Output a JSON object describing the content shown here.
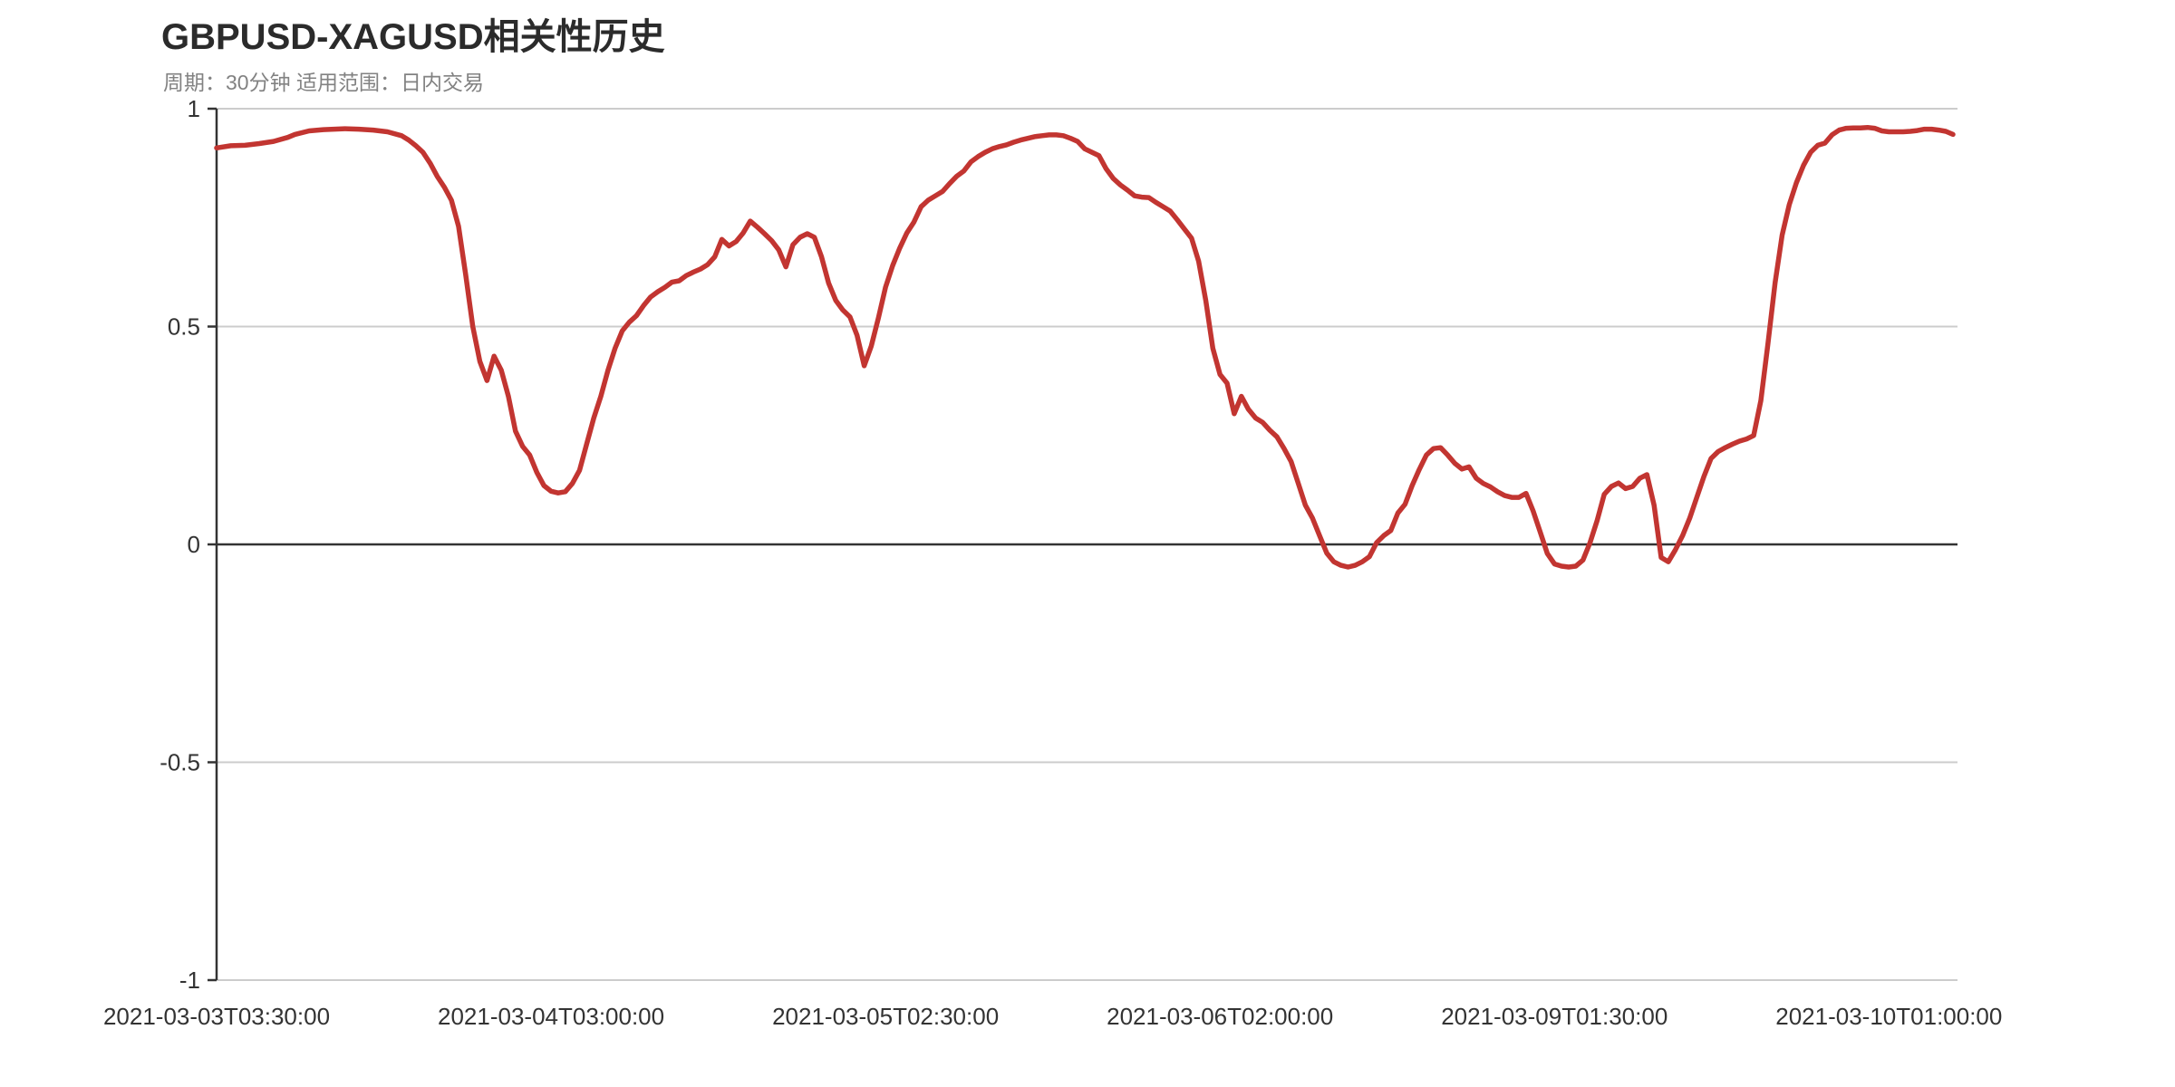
{
  "header": {
    "title": "GBPUSD-XAGUSD相关性历史",
    "subtitle": "周期：30分钟 适用范围：日内交易"
  },
  "chart_data": {
    "type": "line",
    "title": "GBPUSD-XAGUSD相关性历史",
    "subtitle": "周期：30分钟 适用范围：日内交易",
    "xlabel": "",
    "ylabel": "",
    "ylim": [
      -1,
      1
    ],
    "y_tick_labels": [
      "1",
      "0.5",
      "0",
      "-0.5",
      "-1"
    ],
    "y_tick_values": [
      1,
      0.5,
      0,
      -0.5,
      -1
    ],
    "x_tick_labels": [
      "2021-03-03T03:30:00",
      "2021-03-04T03:00:00",
      "2021-03-05T02:30:00",
      "2021-03-06T02:00:00",
      "2021-03-09T01:30:00",
      "2021-03-10T01:00:00"
    ],
    "x_tick_indices": [
      0,
      47,
      94,
      141,
      188,
      235
    ],
    "x_count": 245,
    "grid": true,
    "legend": "none",
    "colors": {
      "line": "#c23531",
      "grid_line": "#cccccc",
      "zero_axis": "#333333",
      "y_axis": "#333333",
      "axis_label": "#333333",
      "title": "#2b2b2b",
      "subtitle": "#828282",
      "background": "#ffffff"
    },
    "points": [
      [
        0,
        0.91
      ],
      [
        2,
        0.915
      ],
      [
        4,
        0.916
      ],
      [
        6,
        0.92
      ],
      [
        8,
        0.925
      ],
      [
        10,
        0.934
      ],
      [
        11,
        0.941
      ],
      [
        13,
        0.949
      ],
      [
        15,
        0.952
      ],
      [
        18,
        0.954
      ],
      [
        20,
        0.953
      ],
      [
        22,
        0.951
      ],
      [
        24,
        0.947
      ],
      [
        26,
        0.938
      ],
      [
        27,
        0.928
      ],
      [
        28,
        0.915
      ],
      [
        29,
        0.9
      ],
      [
        30,
        0.875
      ],
      [
        31,
        0.845
      ],
      [
        32,
        0.82
      ],
      [
        33,
        0.79
      ],
      [
        34,
        0.73
      ],
      [
        35,
        0.62
      ],
      [
        36,
        0.5
      ],
      [
        37,
        0.42
      ],
      [
        38,
        0.376
      ],
      [
        39,
        0.432
      ],
      [
        40,
        0.4
      ],
      [
        41,
        0.34
      ],
      [
        42,
        0.26
      ],
      [
        43,
        0.225
      ],
      [
        44,
        0.205
      ],
      [
        45,
        0.165
      ],
      [
        46,
        0.135
      ],
      [
        47,
        0.122
      ],
      [
        48,
        0.118
      ],
      [
        49,
        0.121
      ],
      [
        50,
        0.14
      ],
      [
        51,
        0.17
      ],
      [
        52,
        0.23
      ],
      [
        53,
        0.29
      ],
      [
        54,
        0.34
      ],
      [
        55,
        0.4
      ],
      [
        56,
        0.45
      ],
      [
        57,
        0.49
      ],
      [
        58,
        0.51
      ],
      [
        59,
        0.525
      ],
      [
        60,
        0.548
      ],
      [
        61,
        0.568
      ],
      [
        62,
        0.58
      ],
      [
        63,
        0.59
      ],
      [
        64,
        0.602
      ],
      [
        65,
        0.605
      ],
      [
        66,
        0.617
      ],
      [
        67,
        0.625
      ],
      [
        68,
        0.632
      ],
      [
        69,
        0.642
      ],
      [
        70,
        0.66
      ],
      [
        71,
        0.7
      ],
      [
        72,
        0.685
      ],
      [
        73,
        0.695
      ],
      [
        74,
        0.715
      ],
      [
        75,
        0.742
      ],
      [
        76,
        0.728
      ],
      [
        77,
        0.713
      ],
      [
        78,
        0.697
      ],
      [
        79,
        0.676
      ],
      [
        80,
        0.637
      ],
      [
        81,
        0.688
      ],
      [
        82,
        0.705
      ],
      [
        83,
        0.713
      ],
      [
        84,
        0.705
      ],
      [
        85,
        0.66
      ],
      [
        86,
        0.6
      ],
      [
        87,
        0.56
      ],
      [
        88,
        0.538
      ],
      [
        89,
        0.522
      ],
      [
        90,
        0.48
      ],
      [
        91,
        0.41
      ],
      [
        92,
        0.455
      ],
      [
        93,
        0.52
      ],
      [
        94,
        0.59
      ],
      [
        95,
        0.64
      ],
      [
        96,
        0.68
      ],
      [
        97,
        0.715
      ],
      [
        98,
        0.74
      ],
      [
        99,
        0.775
      ],
      [
        100,
        0.79
      ],
      [
        101,
        0.8
      ],
      [
        102,
        0.81
      ],
      [
        103,
        0.828
      ],
      [
        104,
        0.845
      ],
      [
        105,
        0.857
      ],
      [
        106,
        0.878
      ],
      [
        107,
        0.89
      ],
      [
        108,
        0.9
      ],
      [
        109,
        0.908
      ],
      [
        110,
        0.913
      ],
      [
        111,
        0.917
      ],
      [
        112,
        0.923
      ],
      [
        113,
        0.928
      ],
      [
        114,
        0.932
      ],
      [
        115,
        0.936
      ],
      [
        116,
        0.938
      ],
      [
        117,
        0.94
      ],
      [
        118,
        0.94
      ],
      [
        119,
        0.938
      ],
      [
        120,
        0.932
      ],
      [
        121,
        0.925
      ],
      [
        122,
        0.908
      ],
      [
        123,
        0.9
      ],
      [
        124,
        0.892
      ],
      [
        125,
        0.862
      ],
      [
        126,
        0.84
      ],
      [
        127,
        0.825
      ],
      [
        128,
        0.813
      ],
      [
        129,
        0.8
      ],
      [
        130,
        0.797
      ],
      [
        131,
        0.796
      ],
      [
        132,
        0.785
      ],
      [
        133,
        0.775
      ],
      [
        134,
        0.765
      ],
      [
        135,
        0.745
      ],
      [
        136,
        0.724
      ],
      [
        137,
        0.703
      ],
      [
        138,
        0.65
      ],
      [
        139,
        0.56
      ],
      [
        140,
        0.45
      ],
      [
        141,
        0.39
      ],
      [
        142,
        0.37
      ],
      [
        143,
        0.3
      ],
      [
        144,
        0.34
      ],
      [
        145,
        0.31
      ],
      [
        146,
        0.29
      ],
      [
        147,
        0.28
      ],
      [
        148,
        0.262
      ],
      [
        149,
        0.247
      ],
      [
        150,
        0.22
      ],
      [
        151,
        0.19
      ],
      [
        152,
        0.14
      ],
      [
        153,
        0.09
      ],
      [
        154,
        0.06
      ],
      [
        155,
        0.02
      ],
      [
        156,
        -0.02
      ],
      [
        157,
        -0.04
      ],
      [
        158,
        -0.048
      ],
      [
        159,
        -0.052
      ],
      [
        160,
        -0.048
      ],
      [
        161,
        -0.04
      ],
      [
        162,
        -0.028
      ],
      [
        163,
        0.004
      ],
      [
        164,
        0.02
      ],
      [
        165,
        0.032
      ],
      [
        166,
        0.072
      ],
      [
        167,
        0.092
      ],
      [
        168,
        0.135
      ],
      [
        169,
        0.172
      ],
      [
        170,
        0.205
      ],
      [
        171,
        0.22
      ],
      [
        172,
        0.222
      ],
      [
        173,
        0.205
      ],
      [
        174,
        0.186
      ],
      [
        175,
        0.173
      ],
      [
        176,
        0.178
      ],
      [
        177,
        0.152
      ],
      [
        178,
        0.14
      ],
      [
        179,
        0.132
      ],
      [
        180,
        0.121
      ],
      [
        181,
        0.112
      ],
      [
        182,
        0.108
      ],
      [
        183,
        0.108
      ],
      [
        184,
        0.117
      ],
      [
        185,
        0.077
      ],
      [
        186,
        0.028
      ],
      [
        187,
        -0.021
      ],
      [
        188,
        -0.045
      ],
      [
        189,
        -0.05
      ],
      [
        190,
        -0.052
      ],
      [
        191,
        -0.05
      ],
      [
        192,
        -0.036
      ],
      [
        193,
        0.004
      ],
      [
        194,
        0.055
      ],
      [
        195,
        0.115
      ],
      [
        196,
        0.133
      ],
      [
        197,
        0.141
      ],
      [
        198,
        0.128
      ],
      [
        199,
        0.133
      ],
      [
        200,
        0.152
      ],
      [
        201,
        0.16
      ],
      [
        202,
        0.09
      ],
      [
        203,
        -0.03
      ],
      [
        204,
        -0.04
      ],
      [
        205,
        -0.012
      ],
      [
        206,
        0.02
      ],
      [
        207,
        0.06
      ],
      [
        208,
        0.108
      ],
      [
        209,
        0.156
      ],
      [
        210,
        0.197
      ],
      [
        211,
        0.213
      ],
      [
        212,
        0.222
      ],
      [
        213,
        0.23
      ],
      [
        214,
        0.237
      ],
      [
        215,
        0.242
      ],
      [
        216,
        0.25
      ],
      [
        217,
        0.33
      ],
      [
        218,
        0.46
      ],
      [
        219,
        0.6
      ],
      [
        220,
        0.71
      ],
      [
        221,
        0.78
      ],
      [
        222,
        0.83
      ],
      [
        223,
        0.87
      ],
      [
        224,
        0.9
      ],
      [
        225,
        0.916
      ],
      [
        226,
        0.921
      ],
      [
        227,
        0.94
      ],
      [
        228,
        0.951
      ],
      [
        229,
        0.955
      ],
      [
        230,
        0.956
      ],
      [
        231,
        0.956
      ],
      [
        232,
        0.957
      ],
      [
        233,
        0.955
      ],
      [
        234,
        0.949
      ],
      [
        235,
        0.947
      ],
      [
        236,
        0.947
      ],
      [
        237,
        0.947
      ],
      [
        238,
        0.948
      ],
      [
        239,
        0.95
      ],
      [
        240,
        0.953
      ],
      [
        241,
        0.953
      ],
      [
        242,
        0.951
      ],
      [
        243,
        0.948
      ],
      [
        244,
        0.941
      ]
    ]
  }
}
